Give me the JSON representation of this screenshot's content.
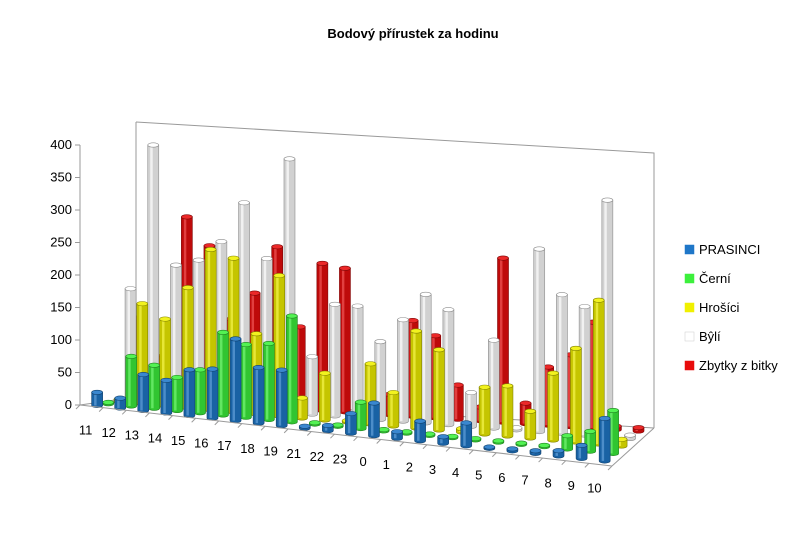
{
  "chart_data": {
    "type": "bar",
    "subtype": "3d-clustered-column",
    "title": "Bodový přírustek za hodinu",
    "xlabel": "",
    "ylabel": "",
    "ylim": [
      0,
      400
    ],
    "yticks": [
      "0",
      "50",
      "100",
      "150",
      "200",
      "250",
      "300",
      "350",
      "400"
    ],
    "categories": [
      "11",
      "12",
      "13",
      "14",
      "15",
      "16",
      "17",
      "18",
      "19",
      "21",
      "22",
      "23",
      "0",
      "1",
      "2",
      "3",
      "4",
      "5",
      "6",
      "7",
      "8",
      "9",
      "10"
    ],
    "legend_position": "right",
    "grid": false,
    "series": [
      {
        "name": "PRASINCI",
        "color": "#1f77c8",
        "values": [
          20,
          15,
          55,
          50,
          70,
          75,
          125,
          85,
          85,
          3,
          8,
          30,
          50,
          10,
          30,
          10,
          35,
          2,
          3,
          4,
          8,
          20,
          65
        ]
      },
      {
        "name": "Černí",
        "color": "#3cf03c",
        "values": [
          2,
          75,
          65,
          50,
          65,
          125,
          110,
          115,
          160,
          2,
          2,
          40,
          2,
          2,
          2,
          2,
          2,
          2,
          2,
          2,
          20,
          30,
          65
        ]
      },
      {
        "name": "Hrošíci",
        "color": "#f0f000",
        "values": [
          4,
          150,
          130,
          180,
          240,
          230,
          120,
          210,
          30,
          70,
          2,
          90,
          50,
          145,
          120,
          5,
          70,
          75,
          40,
          100,
          140,
          215,
          10
        ]
      },
      {
        "name": "Bŷlí",
        "color": "#ffffff",
        "values": [
          165,
          380,
          205,
          215,
          245,
          305,
          225,
          375,
          85,
          165,
          165,
          115,
          150,
          190,
          170,
          50,
          130,
          3,
          270,
          205,
          190,
          350,
          5
        ]
      },
      {
        "name": "Zbytky z bitky",
        "color": "#e80c0c",
        "values": [
          120,
          65,
          270,
          230,
          125,
          165,
          235,
          120,
          215,
          210,
          5,
          30,
          140,
          120,
          50,
          20,
          240,
          30,
          85,
          105,
          155,
          5,
          5
        ]
      }
    ]
  }
}
